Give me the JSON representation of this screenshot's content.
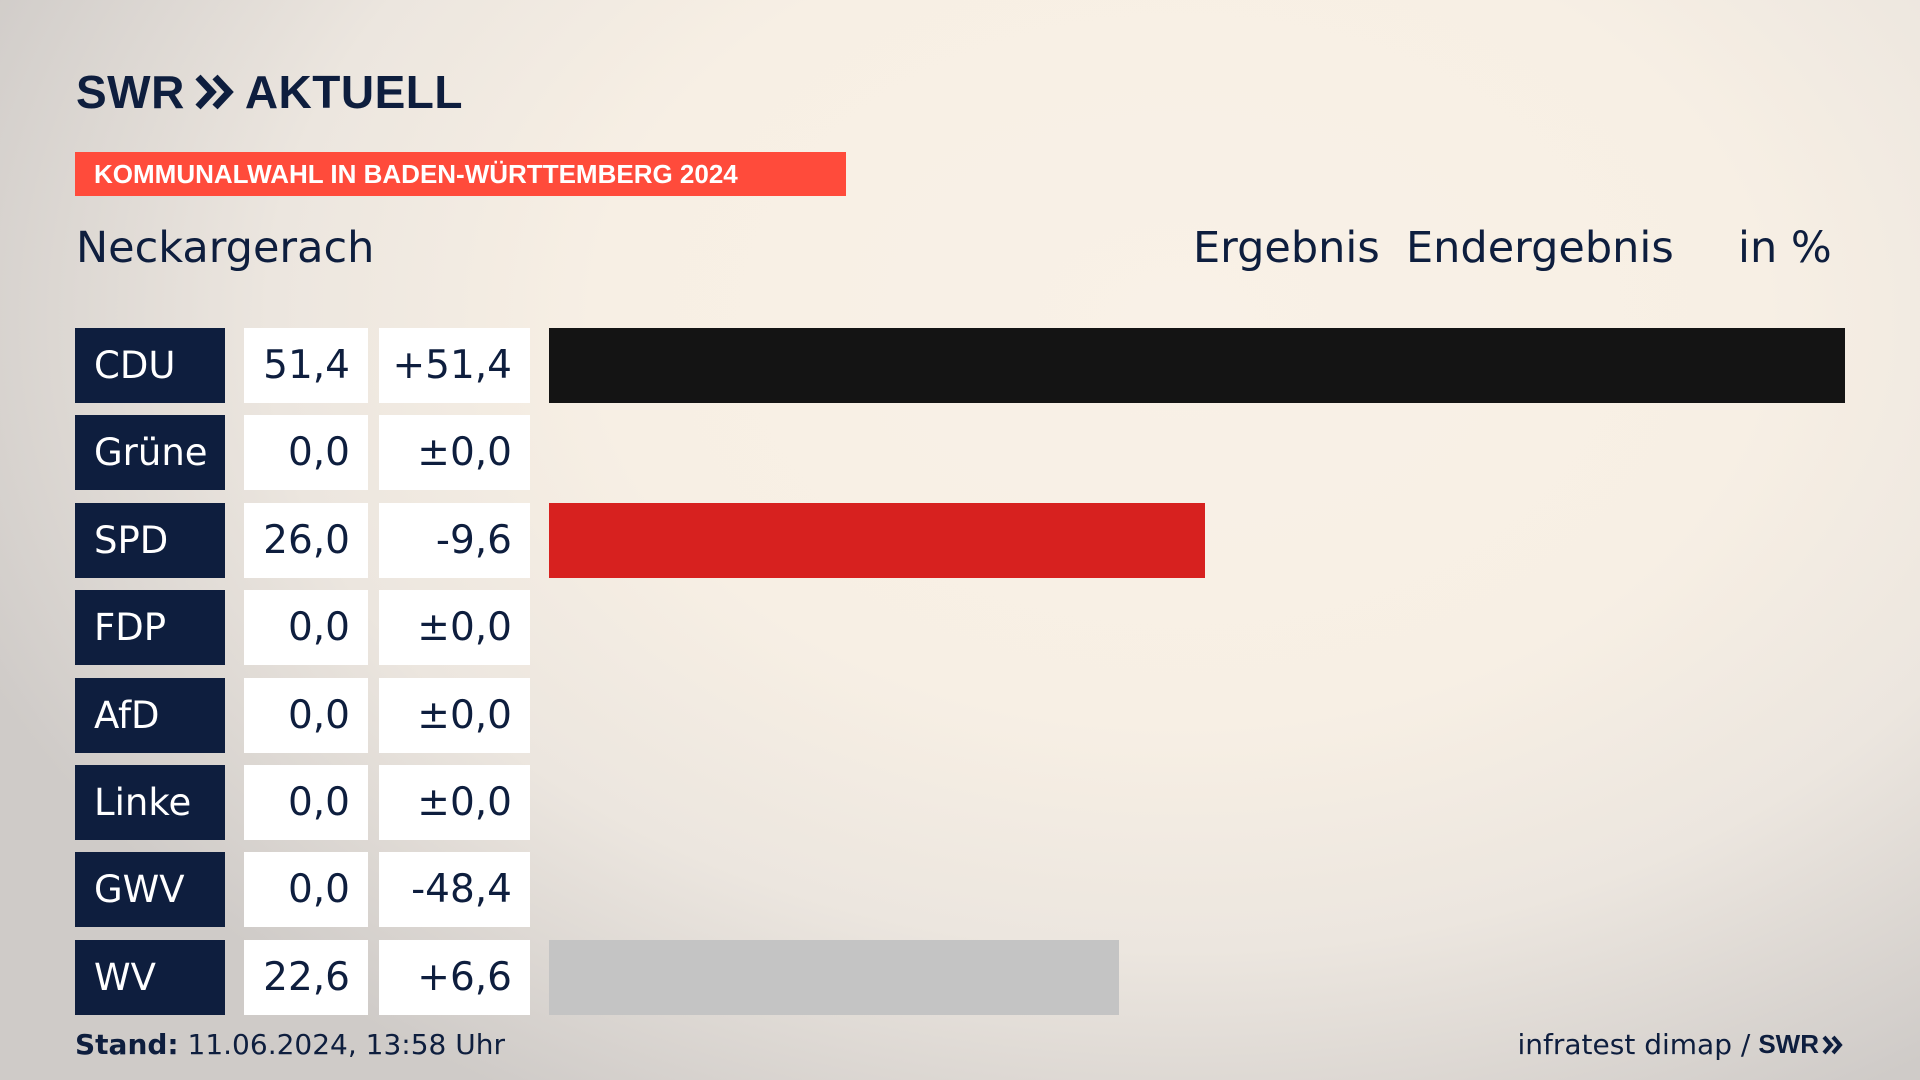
{
  "header": {
    "logo_brand": "SWR",
    "logo_section": "AKTUELL",
    "banner": "KOMMUNALWAHL IN BADEN-WÜRTTEMBERG 2024",
    "location": "Neckargerach",
    "col_result": "Ergebnis",
    "col_status": "Endergebnis",
    "col_unit": "in %"
  },
  "chart_data": {
    "type": "bar",
    "unit": "%",
    "xlim": [
      0,
      51.4
    ],
    "categories": [
      "CDU",
      "Grüne",
      "SPD",
      "FDP",
      "AfD",
      "Linke",
      "GWV",
      "WV"
    ],
    "values": [
      51.4,
      0.0,
      26.0,
      0.0,
      0.0,
      0.0,
      0.0,
      22.6
    ],
    "value_labels": [
      "51,4",
      "0,0",
      "26,0",
      "0,0",
      "0,0",
      "0,0",
      "0,0",
      "22,6"
    ],
    "diff_labels": [
      "+51,4",
      "±0,0",
      "-9,6",
      "±0,0",
      "±0,0",
      "±0,0",
      "-48,4",
      "+6,6"
    ],
    "colors": [
      "#141414",
      "#1aa037",
      "#d7211f",
      "#ffe300",
      "#00a2de",
      "#be3075",
      "#a0a0a0",
      "#c4c4c4"
    ]
  },
  "footer": {
    "stand_label": "Stand:",
    "stand_value": "11.06.2024, 13:58 Uhr",
    "source": "infratest dimap /",
    "source_brand": "SWR"
  },
  "colors": {
    "navy": "#0e1e3e",
    "banner": "#ff4b3b"
  }
}
